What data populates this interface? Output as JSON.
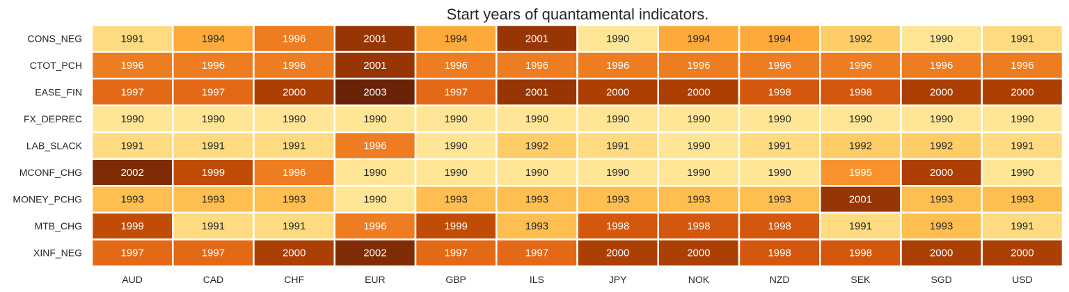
{
  "chart_data": {
    "type": "heatmap",
    "title": "Start years of quantamental indicators.",
    "xlabel": "",
    "ylabel": "",
    "colormap": "YlOrBr",
    "value_range": [
      1990,
      2003
    ],
    "columns": [
      "AUD",
      "CAD",
      "CHF",
      "EUR",
      "GBP",
      "ILS",
      "JPY",
      "NOK",
      "NZD",
      "SEK",
      "SGD",
      "USD"
    ],
    "rows": [
      "CONS_NEG",
      "CTOT_PCH",
      "EASE_FIN",
      "FX_DEPREC",
      "LAB_SLACK",
      "MCONF_CHG",
      "MONEY_PCHG",
      "MTB_CHG",
      "XINF_NEG"
    ],
    "values": [
      [
        1991,
        1994,
        1996,
        2001,
        1994,
        2001,
        1990,
        1994,
        1994,
        1992,
        1990,
        1991
      ],
      [
        1996,
        1996,
        1996,
        2001,
        1996,
        1996,
        1996,
        1996,
        1996,
        1996,
        1996,
        1996
      ],
      [
        1997,
        1997,
        2000,
        2003,
        1997,
        2001,
        2000,
        2000,
        1998,
        1998,
        2000,
        2000
      ],
      [
        1990,
        1990,
        1990,
        1990,
        1990,
        1990,
        1990,
        1990,
        1990,
        1990,
        1990,
        1990
      ],
      [
        1991,
        1991,
        1991,
        1996,
        1990,
        1992,
        1991,
        1990,
        1991,
        1992,
        1992,
        1991
      ],
      [
        2002,
        1999,
        1996,
        1990,
        1990,
        1990,
        1990,
        1990,
        1990,
        1995,
        2000,
        1990
      ],
      [
        1993,
        1993,
        1993,
        1990,
        1993,
        1993,
        1993,
        1993,
        1993,
        2001,
        1993,
        1993
      ],
      [
        1999,
        1991,
        1991,
        1996,
        1999,
        1993,
        1998,
        1998,
        1998,
        1991,
        1993,
        1991
      ],
      [
        1997,
        1997,
        2000,
        2002,
        1997,
        1997,
        2000,
        2000,
        1998,
        1998,
        2000,
        2000
      ]
    ]
  }
}
